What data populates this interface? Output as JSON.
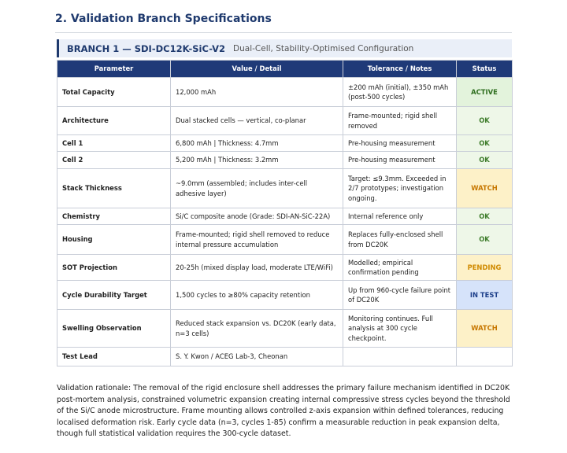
{
  "section_title": "2. Validation Branch Specifications",
  "branch": {
    "label": "BRANCH 1 — SDI-DC12K-SiC-V2",
    "subtitle": "Dual-Cell, Stability-Optimised Configuration"
  },
  "table": {
    "columns": [
      "Parameter",
      "Value / Detail",
      "Tolerance / Notes",
      "Status"
    ],
    "rows": [
      [
        "Total Capacity",
        "12,000 mAh",
        "±200 mAh (initial), ±350 mAh (post-500 cycles)",
        "ACTIVE"
      ],
      [
        "Architecture",
        "Dual stacked cells — vertical, co-planar",
        "Frame-mounted; rigid shell removed",
        "OK"
      ],
      [
        "Cell 1",
        "6,800 mAh | Thickness: 4.7mm",
        "Pre-housing measurement",
        "OK"
      ],
      [
        "Cell 2",
        "5,200 mAh | Thickness: 3.2mm",
        "Pre-housing measurement",
        "OK"
      ],
      [
        "Stack Thickness",
        "~9.0mm (assembled; includes inter-cell adhesive layer)",
        "Target: ≤9.3mm. Exceeded in 2/7 prototypes; investigation ongoing.",
        "WATCH"
      ],
      [
        "Chemistry",
        "Si/C composite anode (Grade: SDI-AN-SiC-22A)",
        "Internal reference only",
        "OK"
      ],
      [
        "Housing",
        "Frame-mounted; rigid shell removed to reduce internal pressure accumulation",
        "Replaces fully-enclosed shell from DC20K",
        "OK"
      ],
      [
        "SOT Projection",
        "20-25h (mixed display load, moderate LTE/WiFi)",
        "Modelled; empirical confirmation pending",
        "PENDING"
      ],
      [
        "Cycle Durability Target",
        "1,500 cycles to ≥80% capacity retention",
        "Up from 960-cycle failure point of DC20K",
        "IN TEST"
      ],
      [
        "Swelling Observation",
        "Reduced stack expansion vs. DC20K (early data, n=3 cells)",
        "Monitoring continues. Full analysis at 300 cycle checkpoint.",
        "WATCH"
      ],
      [
        "Test Lead",
        "S. Y. Kwon / ACEG Lab-3, Cheonan",
        null,
        null
      ]
    ],
    "status_fills": [
      "#e3f3dc",
      "#eef7e8",
      "#eef7e8",
      "#eef7e8",
      "#fdf1c8",
      "#eef7e8",
      "#eef7e8",
      "#fdf1c8",
      "#d6e3fa",
      "#fdf1c8",
      null
    ],
    "status_colors": [
      "#2e6e1e",
      "#3f7d2c",
      "#3f7d2c",
      "#3f7d2c",
      "#c77700",
      "#3f7d2c",
      "#3f7d2c",
      "#d08a00",
      "#1d3f8a",
      "#c77700",
      null
    ]
  },
  "rationale": "Validation rationale: The removal of the rigid enclosure shell addresses the primary failure mechanism identified in DC20K post-mortem analysis, constrained volumetric expansion creating internal compressive stress cycles beyond the threshold of the Si/C anode microstructure. Frame mounting allows controlled z-axis expansion within defined tolerances, reducing localised deformation risk. Early cycle data (n=3, cycles 1-85) confirm a measurable reduction in peak expansion delta, though full statistical validation requires the 300-cycle dataset."
}
